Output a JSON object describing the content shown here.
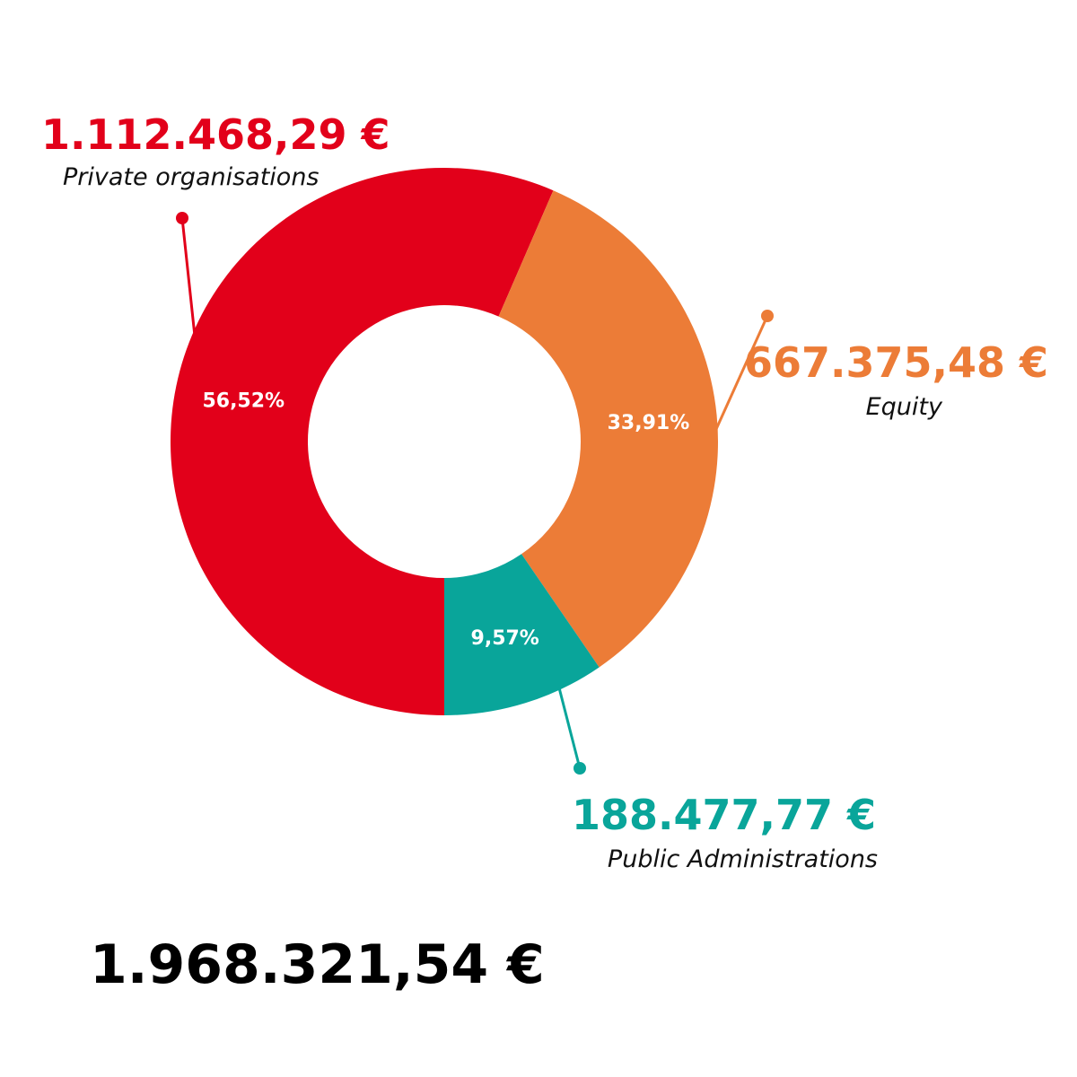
{
  "chart_data": {
    "type": "pie",
    "donut": true,
    "start_angle_deg": 180,
    "direction": "clockwise",
    "slices": [
      {
        "key": "private",
        "label": "Private organisations",
        "amount_text": "1.112.468,29 €",
        "value": 1112468.29,
        "percent": 56.52,
        "percent_text": "56,52%",
        "color": "#E2001A"
      },
      {
        "key": "equity",
        "label": "Equity",
        "amount_text": "667.375,48 €",
        "value": 667375.48,
        "percent": 33.91,
        "percent_text": "33,91%",
        "color": "#EC7C37"
      },
      {
        "key": "public",
        "label": "Public Administrations",
        "amount_text": "188.477,77 €",
        "value": 188477.77,
        "percent": 9.57,
        "percent_text": "9,57%",
        "color": "#09A59A"
      }
    ],
    "total_text": "1.968.321,54 €",
    "total_value": 1968321.54
  }
}
